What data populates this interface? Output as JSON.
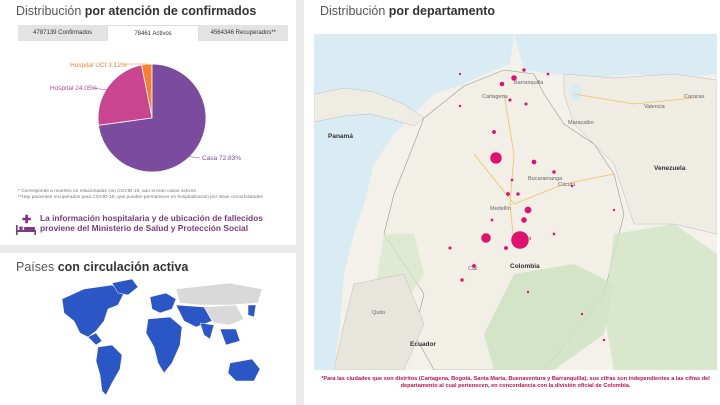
{
  "left_top": {
    "title_plain": "Distribución",
    "title_bold": "por atención de confirmados",
    "tabs": [
      {
        "label": "4787139 Confirmados",
        "active": false
      },
      {
        "label": "78461 Activos",
        "active": true
      },
      {
        "label": "4564346 Recuperados**",
        "active": false
      }
    ],
    "pie": [
      {
        "label": "Hospital UCI 3.12%",
        "value": 3.12,
        "color": "#f7812f"
      },
      {
        "label": "Hospital 24.05%",
        "value": 24.05,
        "color": "#c9458f"
      },
      {
        "label": "Casa 72.83%",
        "value": 72.83,
        "color": "#7b4c9e"
      }
    ],
    "notes": [
      "* Corresponde a muertes no relacionadas con COVID-19, aún si eran casos activos",
      "**Hay pacientes recuperados para COVID-19, que pueden permanecer en hospitalización por otras comorbilidades"
    ],
    "info_line1": "La información hospitalaria y de ubicación de fallecidos",
    "info_line2": "proviene del Ministerio de Salud y Protección Social"
  },
  "left_bottom": {
    "title_plain": "Países",
    "title_bold": "con circulación activa"
  },
  "right": {
    "title_plain": "Distribución",
    "title_bold": "por departamento",
    "map_labels": {
      "panama": "Panamá",
      "venezuela": "Venezuela",
      "colombia": "Colombia",
      "ecuador": "Ecuador",
      "medellin": "Medellín",
      "bogota": "Bogotá",
      "maracaibo": "Maracaibo",
      "valencia": "Valencia",
      "caracas": "Caracas",
      "cucuta": "Cúcuta",
      "bucaramanga": "Bucaramanga",
      "cali": "Cali",
      "quito": "Quito",
      "barranquilla": "Barranquilla",
      "cartagena": "Cartagena"
    },
    "footnote": "*Para las ciudades que son distritos (Cartagena, Bogotá, Santa Marta, Buenaventura y Barranquilla), sus cifras son independientes a las cifras del departamento al cual pertenecen, en concordancia con la división oficial de Colombia."
  },
  "colors": {
    "accent_purple": "#7c3a83",
    "highlight_blue": "#2b56c5",
    "dot_pink": "#e0126f",
    "footnote_red": "#c0104d"
  }
}
